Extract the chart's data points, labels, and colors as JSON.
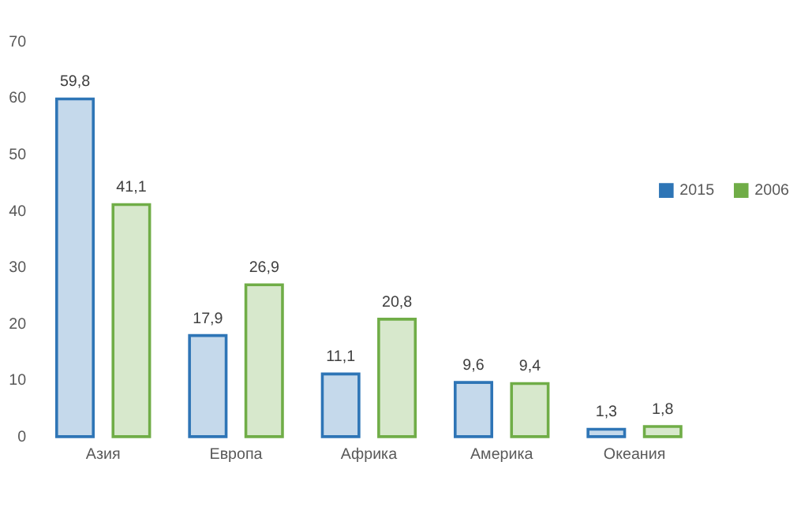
{
  "chart_data": {
    "type": "bar",
    "categories": [
      "Азия",
      "Европа",
      "Африка",
      "Америка",
      "Океания"
    ],
    "series": [
      {
        "name": "2015",
        "color": "#2e75b6",
        "values": [
          59.8,
          17.9,
          11.1,
          9.6,
          1.3
        ]
      },
      {
        "name": "2006",
        "color": "#70ad47",
        "values": [
          41.1,
          26.9,
          20.8,
          9.4,
          1.8
        ]
      }
    ],
    "value_labels": [
      [
        "59,8",
        "17,9",
        "11,1",
        "9,6",
        "1,3"
      ],
      [
        "41,1",
        "26,9",
        "20,8",
        "9,4",
        "1,8"
      ]
    ],
    "ylim": [
      0,
      70
    ],
    "yticks": [
      0,
      10,
      20,
      30,
      40,
      50,
      60,
      70
    ],
    "grid": false,
    "legend": "right"
  }
}
